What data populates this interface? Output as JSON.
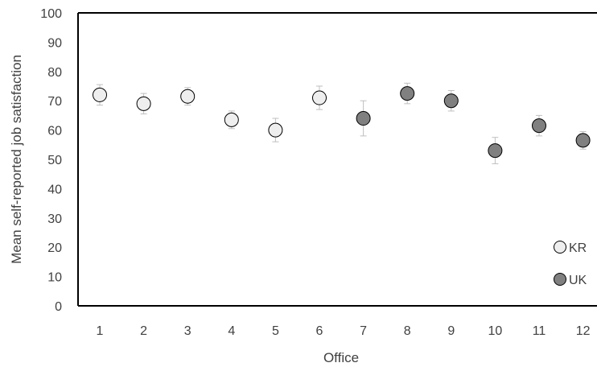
{
  "chart_data": {
    "type": "scatter",
    "title": "",
    "xlabel": "Office",
    "ylabel": "Mean self-reported job satisfaction",
    "categories": [
      "1",
      "2",
      "3",
      "4",
      "5",
      "6",
      "7",
      "8",
      "9",
      "10",
      "11",
      "12"
    ],
    "ylim": [
      0,
      100
    ],
    "yticks": [
      "0",
      "10",
      "20",
      "30",
      "40",
      "50",
      "60",
      "70",
      "80",
      "90",
      "100"
    ],
    "grid": false,
    "legend_position": "bottom-right",
    "series": [
      {
        "name": "KR",
        "color": "#eeeeee",
        "x": [
          "1",
          "2",
          "3",
          "4",
          "5",
          "6"
        ],
        "values": [
          72,
          69,
          71.5,
          63.5,
          60,
          71
        ],
        "error": [
          3.5,
          3.5,
          3,
          3,
          4,
          4
        ]
      },
      {
        "name": "UK",
        "color": "#808080",
        "x": [
          "7",
          "8",
          "9",
          "10",
          "11",
          "12"
        ],
        "values": [
          64,
          72.5,
          70,
          53,
          61.5,
          56.5
        ],
        "error": [
          6,
          3.5,
          3.5,
          4.5,
          3.5,
          3
        ]
      }
    ]
  }
}
